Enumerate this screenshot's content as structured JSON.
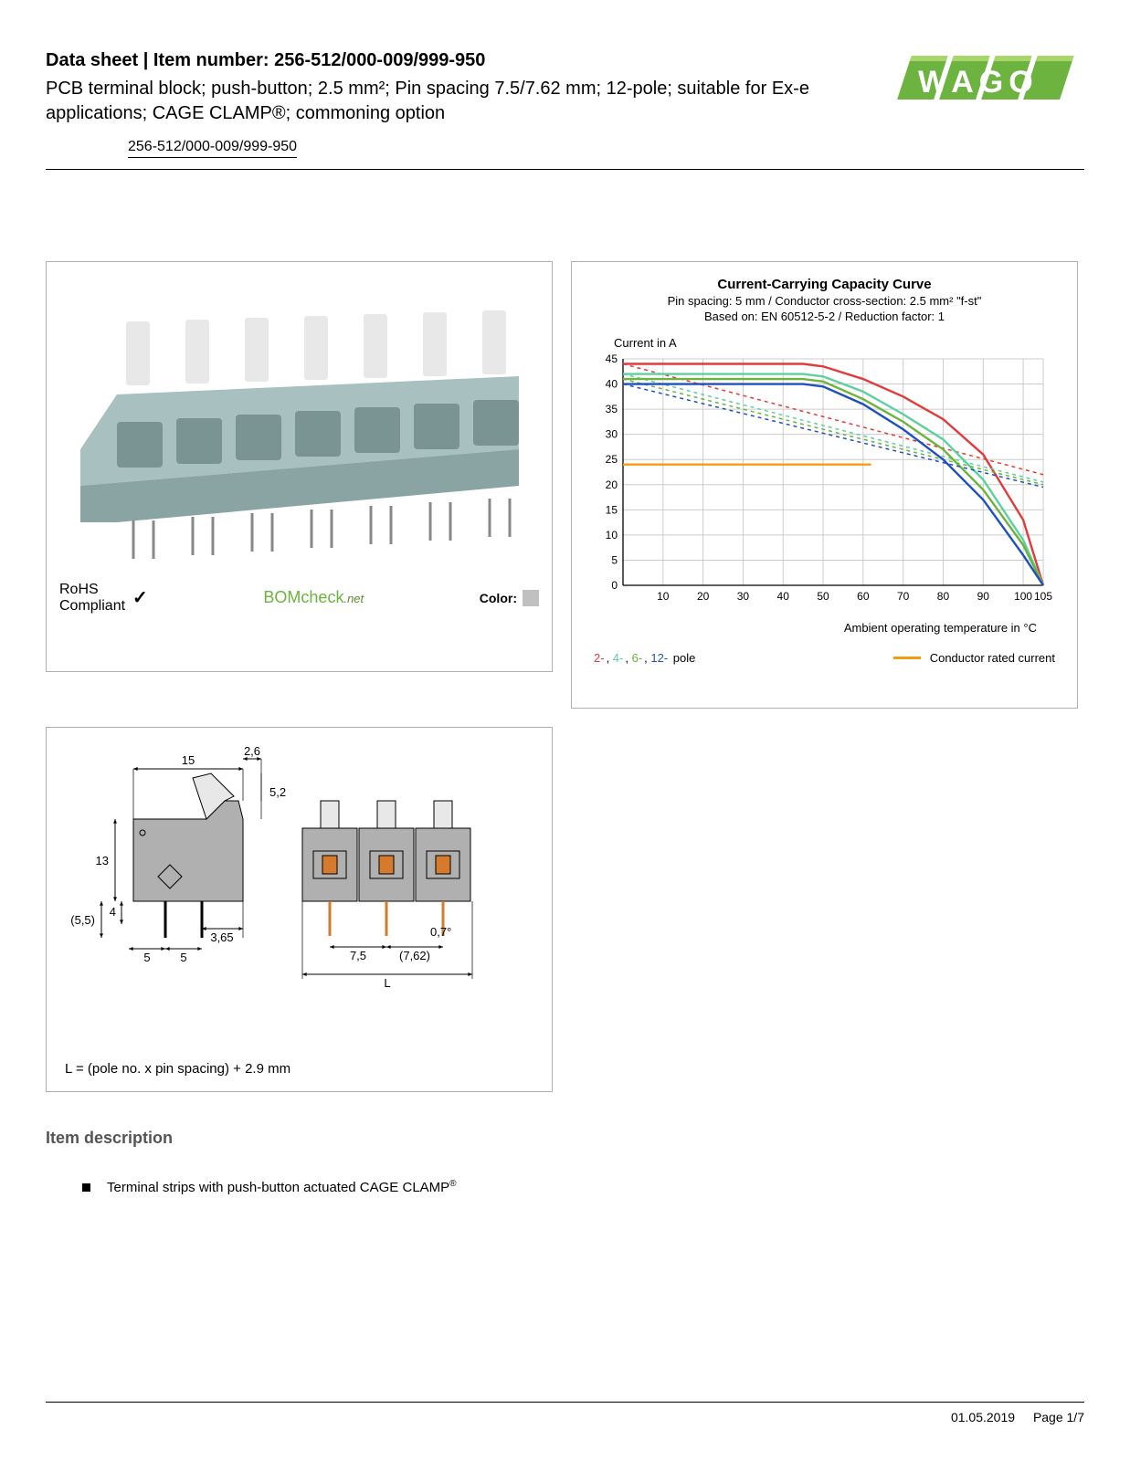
{
  "header": {
    "title_prefix": "Data sheet  |  Item number: ",
    "item_number": "256-512/000-009/999-950",
    "subtitle": "PCB terminal block; push-button; 2.5 mm²; Pin spacing 7.5/7.62 mm; 12-pole; suitable for Ex-e applications; CAGE CLAMP®; commoning option",
    "part_number_link": "256-512/000-009/999-950"
  },
  "logo": {
    "text": "WAGO",
    "colors": {
      "fill": "#6cb33f",
      "shadow": "#3e7a1f",
      "top": "#a8d66a"
    }
  },
  "product_panel": {
    "rohs_line1": "RoHS",
    "rohs_line2": "Compliant",
    "bomcheck_main": "BOMcheck",
    "bomcheck_suffix": ".net",
    "color_label": "Color:",
    "swatch_color": "#c0c0c0",
    "block_color": "#a8c0c0",
    "button_color": "#e8e8e8",
    "pin_color": "#888888"
  },
  "chart": {
    "title": "Current-Carrying Capacity Curve",
    "sub1": "Pin spacing: 5 mm / Conductor cross-section: 2.5 mm² \"f-st\"",
    "sub2": "Based on: EN 60512-5-2 / Reduction factor: 1",
    "y_label": "Current in A",
    "x_label": "Ambient operating temperature in °C",
    "y_min": 0,
    "y_max": 45,
    "y_step": 5,
    "x_min": 0,
    "x_max": 105,
    "x_ticks": [
      10,
      20,
      30,
      40,
      50,
      60,
      70,
      80,
      90,
      100,
      105
    ],
    "grid_color": "#cccccc",
    "rated_current": 24,
    "rated_color": "#f39c12",
    "series": [
      {
        "name": "2-pole",
        "color": "#e23b3b",
        "solid": [
          [
            0,
            44
          ],
          [
            45,
            44
          ],
          [
            50,
            43.5
          ],
          [
            60,
            41
          ],
          [
            70,
            37.5
          ],
          [
            80,
            33
          ],
          [
            90,
            26
          ],
          [
            100,
            13
          ],
          [
            105,
            0
          ]
        ],
        "dashed": [
          [
            0,
            44
          ],
          [
            105,
            22
          ]
        ]
      },
      {
        "name": "4-pole",
        "color": "#5ed0a0",
        "solid": [
          [
            0,
            42
          ],
          [
            45,
            42
          ],
          [
            50,
            41.5
          ],
          [
            60,
            38.5
          ],
          [
            70,
            34
          ],
          [
            80,
            29
          ],
          [
            90,
            21
          ],
          [
            100,
            9
          ],
          [
            105,
            0
          ]
        ],
        "dashed": [
          [
            0,
            42
          ],
          [
            105,
            20.5
          ]
        ]
      },
      {
        "name": "6-pole",
        "color": "#6cb33f",
        "solid": [
          [
            0,
            41
          ],
          [
            45,
            41
          ],
          [
            50,
            40.5
          ],
          [
            60,
            37
          ],
          [
            70,
            32.5
          ],
          [
            80,
            27
          ],
          [
            90,
            19
          ],
          [
            100,
            8
          ],
          [
            105,
            0
          ]
        ],
        "dashed": [
          [
            0,
            41
          ],
          [
            105,
            20
          ]
        ]
      },
      {
        "name": "12-pole",
        "color": "#2050c0",
        "solid": [
          [
            0,
            40
          ],
          [
            45,
            40
          ],
          [
            50,
            39.5
          ],
          [
            60,
            36
          ],
          [
            70,
            31
          ],
          [
            80,
            25
          ],
          [
            90,
            17
          ],
          [
            100,
            6
          ],
          [
            105,
            0
          ]
        ],
        "dashed": [
          [
            0,
            40
          ],
          [
            105,
            19.5
          ]
        ]
      }
    ],
    "legend_poles": [
      {
        "text": "2-",
        "color": "#e23b3b"
      },
      {
        "text": "4-",
        "color": "#5ed0a0"
      },
      {
        "text": "6-",
        "color": "#6cb33f"
      },
      {
        "text": "12-",
        "color": "#2050c0"
      },
      {
        "text": " pole",
        "color": "#000000"
      }
    ],
    "legend_conductor": "Conductor rated current"
  },
  "dimensions": {
    "caption": "L = (pole no. x pin spacing) + 2.9 mm",
    "values": {
      "w_top": "15",
      "t_top": "2,6",
      "h_button": "5,2",
      "h_body": "13",
      "h_under": "(5,5)",
      "pin_depth": "4",
      "pin_pitch_a": "5",
      "pin_pitch_b": "5",
      "pin_len": "3,65",
      "pitch1": "7,5",
      "pitch2": "(7,62)",
      "tol": "0,7°",
      "length": "L"
    },
    "colors": {
      "body": "#b0b0b0",
      "accent": "#d67a2e",
      "line": "#000000"
    }
  },
  "description": {
    "heading": "Item description",
    "bullet1_main": "Terminal strips with push-button actuated CAGE CLAMP",
    "bullet1_sup": "®"
  },
  "footer": {
    "date": "01.05.2019",
    "page": "Page 1/7"
  }
}
